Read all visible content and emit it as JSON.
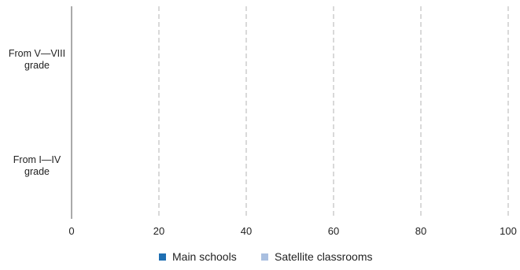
{
  "chart_data": {
    "type": "bar",
    "orientation": "horizontal",
    "categories": [
      [
        "From V—VIII",
        "grade"
      ],
      [
        "From I—IV",
        "grade"
      ]
    ],
    "series": [
      {
        "name": "Main schools",
        "values": [
          0,
          0
        ],
        "color": "#1f6fb2"
      },
      {
        "name": "Satellite classrooms",
        "values": [
          0,
          0
        ],
        "color": "#a9bfe0"
      }
    ],
    "xlim": [
      0,
      100
    ],
    "xticks": [
      "0",
      "20",
      "40",
      "60",
      "80",
      "100"
    ],
    "grid": "vertical dashed",
    "legend": "bottom-center"
  }
}
